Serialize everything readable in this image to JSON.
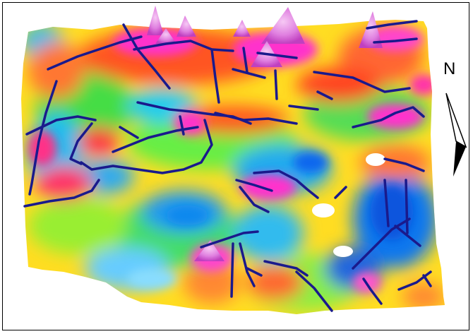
{
  "north_arrow": {
    "label": "N",
    "icon": "north-arrow-icon"
  },
  "colors": {
    "anomaly_high": "#ff33cc",
    "anomaly_peak": "#ee88ee",
    "anomaly_mid_high": "#ff6633",
    "anomaly_mid": "#ffee00",
    "anomaly_mid_low": "#33dd33",
    "anomaly_low": "#00ccee",
    "anomaly_lowest": "#1166ee",
    "lineament": "#1a1a8c",
    "frame": "#000000"
  }
}
